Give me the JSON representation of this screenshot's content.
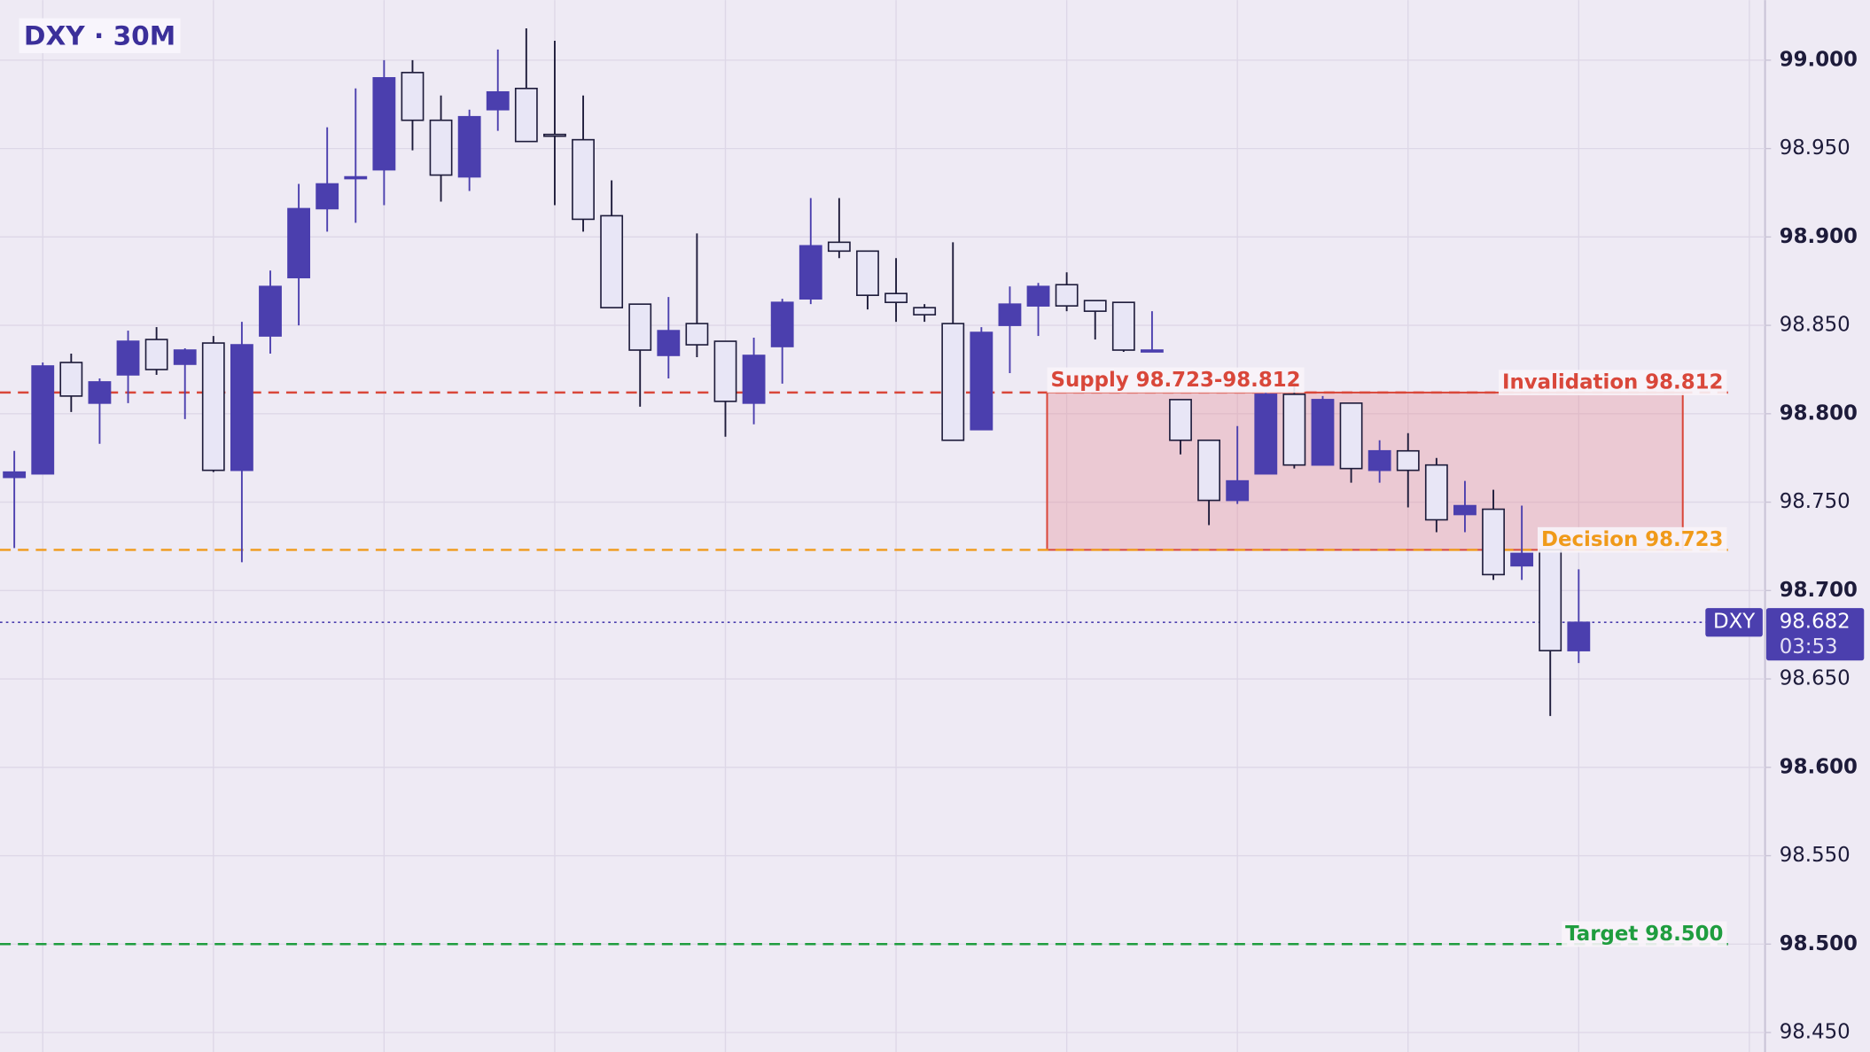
{
  "chart_data": {
    "type": "candlestick",
    "title": "DXY · 30M",
    "up_color": "#4b3fae",
    "down_color": "#e8e6f6",
    "open": [
      98.764,
      98.766,
      98.829,
      98.806,
      98.822,
      98.842,
      98.828,
      98.84,
      98.768,
      98.844,
      98.877,
      98.916,
      98.933,
      98.938,
      98.993,
      98.966,
      98.934,
      98.972,
      98.984,
      98.958,
      98.955,
      98.912,
      98.862,
      98.833,
      98.851,
      98.841,
      98.806,
      98.838,
      98.865,
      98.897,
      98.892,
      98.868,
      98.86,
      98.851,
      98.791,
      98.85,
      98.861,
      98.873,
      98.864,
      98.863,
      98.836,
      98.808,
      98.785,
      98.751,
      98.766,
      98.811,
      98.771,
      98.806,
      98.768,
      98.779,
      98.771,
      98.743,
      98.746,
      98.714,
      98.723,
      98.666
    ],
    "high": [
      98.779,
      98.829,
      98.834,
      98.82,
      98.847,
      98.849,
      98.837,
      98.844,
      98.852,
      98.881,
      98.93,
      98.962,
      98.984,
      99.0,
      99.0,
      98.98,
      98.972,
      99.006,
      99.018,
      99.011,
      98.98,
      98.932,
      98.862,
      98.866,
      98.902,
      98.841,
      98.843,
      98.865,
      98.922,
      98.922,
      98.892,
      98.888,
      98.862,
      98.897,
      98.849,
      98.872,
      98.874,
      98.88,
      98.864,
      98.863,
      98.858,
      98.808,
      98.785,
      98.793,
      98.812,
      98.82,
      98.81,
      98.806,
      98.785,
      98.789,
      98.775,
      98.762,
      98.757,
      98.748,
      98.723,
      98.712
    ],
    "low": [
      98.724,
      98.766,
      98.801,
      98.783,
      98.806,
      98.822,
      98.797,
      98.767,
      98.716,
      98.834,
      98.85,
      98.903,
      98.908,
      98.918,
      98.949,
      98.92,
      98.926,
      98.96,
      98.954,
      98.918,
      98.903,
      98.86,
      98.804,
      98.82,
      98.832,
      98.787,
      98.794,
      98.817,
      98.862,
      98.888,
      98.859,
      98.852,
      98.852,
      98.785,
      98.791,
      98.823,
      98.844,
      98.858,
      98.842,
      98.835,
      98.836,
      98.777,
      98.737,
      98.749,
      98.766,
      98.769,
      98.771,
      98.761,
      98.761,
      98.747,
      98.733,
      98.733,
      98.706,
      98.706,
      98.629,
      98.659
    ],
    "close": [
      98.767,
      98.827,
      98.81,
      98.818,
      98.841,
      98.825,
      98.836,
      98.768,
      98.839,
      98.872,
      98.916,
      98.93,
      98.934,
      98.99,
      98.966,
      98.935,
      98.968,
      98.982,
      98.954,
      98.957,
      98.91,
      98.86,
      98.836,
      98.847,
      98.839,
      98.807,
      98.833,
      98.863,
      98.895,
      98.892,
      98.867,
      98.863,
      98.856,
      98.785,
      98.846,
      98.862,
      98.872,
      98.861,
      98.858,
      98.836,
      98.836,
      98.785,
      98.751,
      98.762,
      98.811,
      98.771,
      98.808,
      98.769,
      98.779,
      98.768,
      98.74,
      98.748,
      98.709,
      98.721,
      98.666,
      98.682
    ],
    "ylim": [
      98.439,
      99.034
    ],
    "yticks": [
      {
        "value": 98.45,
        "label": "98.450"
      },
      {
        "value": 98.5,
        "label": "98.500"
      },
      {
        "value": 98.55,
        "label": "98.550"
      },
      {
        "value": 98.6,
        "label": "98.600"
      },
      {
        "value": 98.65,
        "label": "98.650"
      },
      {
        "value": 98.7,
        "label": "98.700"
      },
      {
        "value": 98.75,
        "label": "98.750"
      },
      {
        "value": 98.8,
        "label": "98.800"
      },
      {
        "value": 98.85,
        "label": "98.850"
      },
      {
        "value": 98.9,
        "label": "98.900"
      },
      {
        "value": 98.95,
        "label": "98.950"
      },
      {
        "value": 99,
        "label": "99.000"
      }
    ],
    "grid": true,
    "zone": {
      "label": "Supply 98.723-98.812",
      "low": 98.723,
      "high": 98.812,
      "color": "#d9473a"
    },
    "levels": [
      {
        "label": "Invalidation  98.812",
        "value": 98.812,
        "color": "#d9473a"
      },
      {
        "label": "Decision  98.723",
        "value": 98.723,
        "color": "#f09a1a"
      },
      {
        "label": "Target  98.500",
        "value": 98.5,
        "color": "#1f9d3f"
      }
    ],
    "current": {
      "symbol": "DXY",
      "value": 98.682,
      "countdown": "03:53",
      "color": "#4b3fae"
    }
  }
}
